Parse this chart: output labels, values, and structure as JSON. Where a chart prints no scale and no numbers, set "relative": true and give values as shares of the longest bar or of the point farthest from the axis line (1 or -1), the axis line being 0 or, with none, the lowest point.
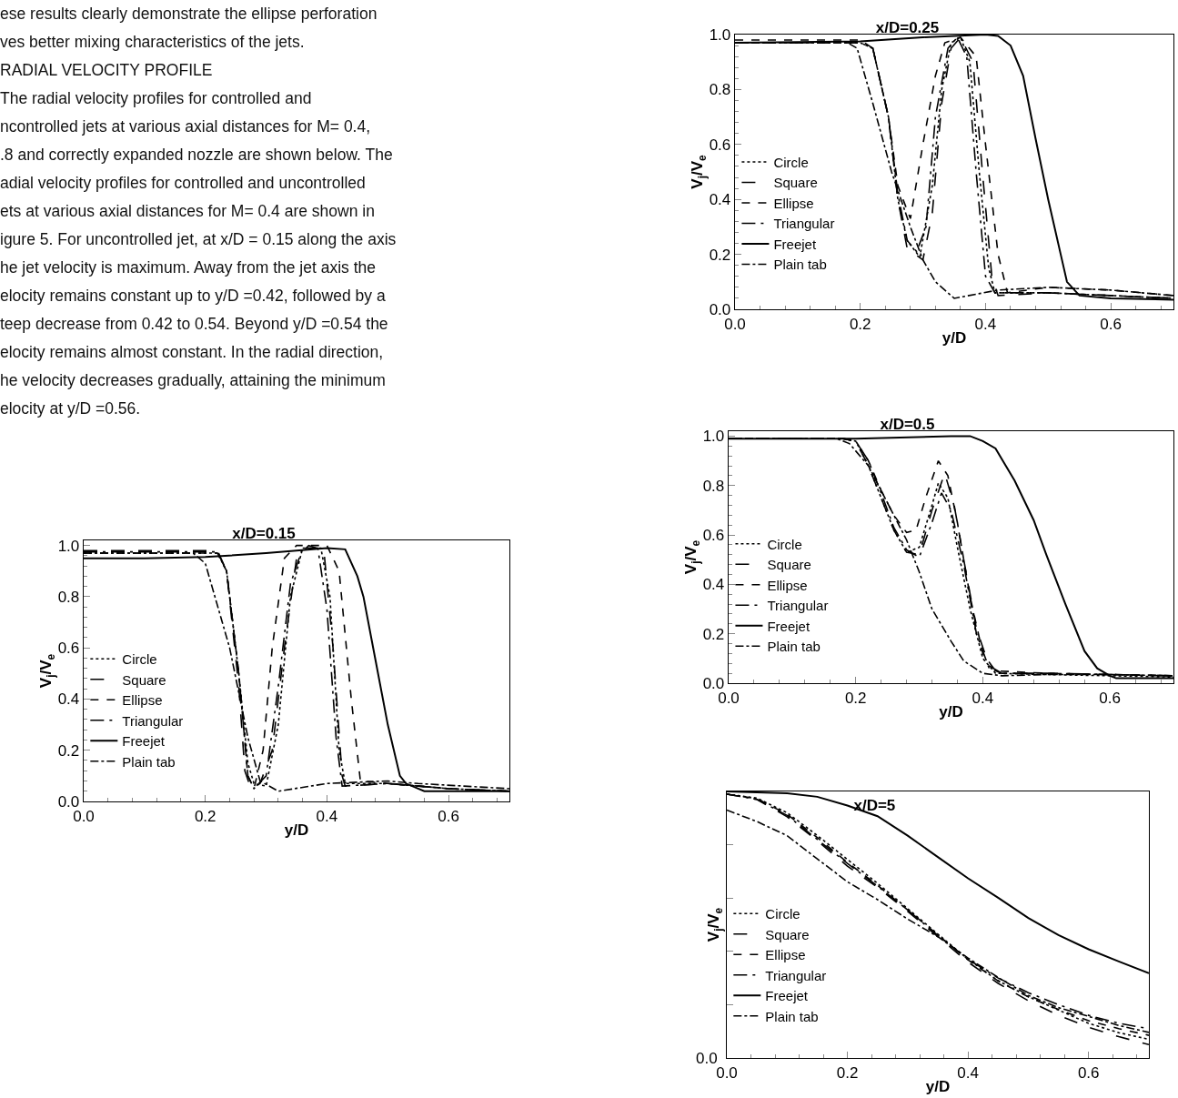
{
  "chart_data": [
    {
      "type": "other",
      "annotations": [
        "ese results clearly demonstrate the ellipse perforation",
        "ves better mixing characteristics of the jets.",
        "RADIAL VELOCITY PROFILE",
        "The radial velocity profiles for controlled and",
        "ncontrolled jets at various axial distances for M= 0.4,",
        ".8 and correctly expanded nozzle are shown below. The",
        "adial velocity profiles for controlled and uncontrolled",
        "ets at various axial distances for M= 0.4 are shown in",
        "igure 5. For uncontrolled jet, at x/D = 0.15 along the axis",
        "he jet velocity is maximum. Away from the jet axis the",
        "elocity remains constant up to y/D =0.42, followed by a",
        "teep decrease from 0.42 to 0.54. Beyond y/D =0.54 the",
        "elocity remains almost constant. In the radial direction,",
        "he velocity decreases gradually, attaining the minimum",
        "elocity at y/D =0.56."
      ]
    },
    {
      "type": "line",
      "title": "x/D=0.15",
      "xlabel": "y/D",
      "ylabel": "V$_{j}$/V$_{e}$",
      "xlim": [
        0,
        0.7
      ],
      "xticks": [
        {
          "value": 0,
          "label": "0.0"
        },
        {
          "value": 0.2,
          "label": "0.2"
        },
        {
          "value": 0.4,
          "label": "0.4"
        },
        {
          "value": 0.6,
          "label": "0.6"
        }
      ],
      "ylim": [
        0,
        1.02
      ],
      "yticks": [
        {
          "value": 0,
          "label": "0.0"
        },
        {
          "value": 0.2,
          "label": "0.2"
        },
        {
          "value": 0.4,
          "label": "0.4"
        },
        {
          "value": 0.6,
          "label": "0.6"
        },
        {
          "value": 0.8,
          "label": "0.8"
        },
        {
          "value": 1,
          "label": "1.0"
        }
      ],
      "grid": false,
      "legend": "left",
      "series": [
        {
          "name": "Circle",
          "color": "#000000",
          "line_style": "dotted",
          "x": [
            0,
            0.22,
            0.235,
            0.255,
            0.27,
            0.28,
            0.3,
            0.32,
            0.34,
            0.36,
            0.39,
            0.405,
            0.42,
            0.43,
            0.5,
            0.6,
            0.7
          ],
          "values": [
            0.97,
            0.97,
            0.9,
            0.5,
            0.15,
            0.07,
            0.06,
            0.3,
            0.8,
            0.99,
            0.99,
            0.8,
            0.2,
            0.07,
            0.07,
            0.05,
            0.04
          ]
        },
        {
          "name": "Square",
          "color": "#000000",
          "line_style": "longdash",
          "x": [
            0,
            0.22,
            0.235,
            0.255,
            0.265,
            0.275,
            0.29,
            0.31,
            0.33,
            0.35,
            0.37,
            0.395,
            0.41,
            0.425,
            0.43,
            0.5,
            0.6,
            0.7
          ],
          "values": [
            0.98,
            0.98,
            0.9,
            0.45,
            0.12,
            0.05,
            0.07,
            0.2,
            0.6,
            0.95,
            1.0,
            0.98,
            0.6,
            0.1,
            0.06,
            0.07,
            0.05,
            0.04
          ]
        },
        {
          "name": "Ellipse",
          "color": "#000000",
          "line_style": "dashed",
          "x": [
            0,
            0.22,
            0.235,
            0.255,
            0.27,
            0.28,
            0.295,
            0.31,
            0.33,
            0.35,
            0.4,
            0.42,
            0.44,
            0.455,
            0.5,
            0.6,
            0.7
          ],
          "values": [
            0.97,
            0.97,
            0.9,
            0.5,
            0.1,
            0.05,
            0.2,
            0.6,
            0.95,
            1.0,
            1.0,
            0.9,
            0.4,
            0.08,
            0.07,
            0.05,
            0.04
          ]
        },
        {
          "name": "Triangular",
          "color": "#000000",
          "line_style": "longdashdot",
          "x": [
            0,
            0.22,
            0.235,
            0.255,
            0.27,
            0.28,
            0.3,
            0.32,
            0.34,
            0.36,
            0.385,
            0.4,
            0.415,
            0.425,
            0.5,
            0.6,
            0.7
          ],
          "values": [
            0.975,
            0.975,
            0.9,
            0.5,
            0.1,
            0.05,
            0.1,
            0.45,
            0.85,
            0.99,
            0.99,
            0.75,
            0.25,
            0.06,
            0.07,
            0.05,
            0.04
          ]
        },
        {
          "name": "Freejet",
          "color": "#000000",
          "line_style": "solid",
          "x": [
            0,
            0.1,
            0.2,
            0.3,
            0.35,
            0.4,
            0.43,
            0.45,
            0.46,
            0.48,
            0.5,
            0.52,
            0.53,
            0.56,
            0.7
          ],
          "values": [
            0.95,
            0.95,
            0.955,
            0.97,
            0.98,
            0.99,
            0.985,
            0.88,
            0.8,
            0.55,
            0.3,
            0.1,
            0.07,
            0.04,
            0.04
          ]
        },
        {
          "name": "Plain tab",
          "color": "#000000",
          "line_style": "dashdot",
          "x": [
            0,
            0.18,
            0.2,
            0.24,
            0.27,
            0.29,
            0.32,
            0.4,
            0.45,
            0.5,
            0.55,
            0.7
          ],
          "values": [
            0.97,
            0.97,
            0.93,
            0.6,
            0.25,
            0.08,
            0.04,
            0.07,
            0.075,
            0.08,
            0.07,
            0.05
          ]
        }
      ]
    },
    {
      "type": "line",
      "title": "x/D=0.25",
      "xlabel": "y/D",
      "ylabel": "V$_{j}$/V$_{e}$",
      "xlim": [
        0,
        0.7
      ],
      "xticks": [
        {
          "value": 0,
          "label": "0.0"
        },
        {
          "value": 0.2,
          "label": "0.2"
        },
        {
          "value": 0.4,
          "label": "0.4"
        },
        {
          "value": 0.6,
          "label": "0.6"
        }
      ],
      "ylim": [
        0,
        1
      ],
      "yticks": [
        {
          "value": 0,
          "label": "0.0"
        },
        {
          "value": 0.2,
          "label": "0.2"
        },
        {
          "value": 0.4,
          "label": "0.4"
        },
        {
          "value": 0.6,
          "label": "0.6"
        },
        {
          "value": 0.8,
          "label": "0.8"
        },
        {
          "value": 1,
          "label": "1.0"
        }
      ],
      "grid": false,
      "legend": "left",
      "series": [
        {
          "name": "Circle",
          "color": "#000000",
          "line_style": "dotted",
          "x": [
            0,
            0.2,
            0.22,
            0.245,
            0.26,
            0.275,
            0.295,
            0.315,
            0.33,
            0.345,
            0.36,
            0.375,
            0.39,
            0.405,
            0.415,
            0.5,
            0.6,
            0.7
          ],
          "values": [
            0.97,
            0.97,
            0.95,
            0.7,
            0.4,
            0.25,
            0.19,
            0.45,
            0.8,
            0.97,
            0.99,
            0.9,
            0.5,
            0.15,
            0.06,
            0.06,
            0.05,
            0.04
          ]
        },
        {
          "name": "Square",
          "color": "#000000",
          "line_style": "longdash",
          "x": [
            0,
            0.2,
            0.22,
            0.245,
            0.26,
            0.275,
            0.3,
            0.315,
            0.33,
            0.345,
            0.36,
            0.38,
            0.395,
            0.41,
            0.42,
            0.5,
            0.6,
            0.7
          ],
          "values": [
            0.97,
            0.97,
            0.95,
            0.7,
            0.4,
            0.22,
            0.18,
            0.35,
            0.75,
            0.95,
            0.99,
            0.9,
            0.5,
            0.12,
            0.05,
            0.06,
            0.05,
            0.04
          ]
        },
        {
          "name": "Ellipse",
          "color": "#000000",
          "line_style": "dashed",
          "x": [
            0,
            0.2,
            0.22,
            0.245,
            0.26,
            0.28,
            0.3,
            0.32,
            0.335,
            0.36,
            0.385,
            0.4,
            0.42,
            0.435,
            0.5,
            0.6,
            0.7
          ],
          "values": [
            0.98,
            0.98,
            0.95,
            0.7,
            0.45,
            0.33,
            0.6,
            0.85,
            0.97,
            0.99,
            0.92,
            0.6,
            0.2,
            0.06,
            0.08,
            0.07,
            0.05
          ]
        },
        {
          "name": "Triangular",
          "color": "#000000",
          "line_style": "longdashdot",
          "x": [
            0,
            0.2,
            0.22,
            0.245,
            0.26,
            0.275,
            0.29,
            0.305,
            0.32,
            0.34,
            0.355,
            0.37,
            0.385,
            0.4,
            0.415,
            0.5,
            0.6,
            0.7
          ],
          "values": [
            0.97,
            0.97,
            0.95,
            0.7,
            0.42,
            0.25,
            0.21,
            0.3,
            0.7,
            0.95,
            0.99,
            0.92,
            0.5,
            0.12,
            0.06,
            0.06,
            0.05,
            0.04
          ]
        },
        {
          "name": "Freejet",
          "color": "#000000",
          "line_style": "solid",
          "x": [
            0,
            0.2,
            0.3,
            0.4,
            0.42,
            0.44,
            0.46,
            0.48,
            0.5,
            0.52,
            0.53,
            0.55,
            0.6,
            0.7
          ],
          "values": [
            0.97,
            0.975,
            0.99,
            1.0,
            0.995,
            0.96,
            0.85,
            0.62,
            0.4,
            0.2,
            0.1,
            0.05,
            0.04,
            0.035
          ]
        },
        {
          "name": "Plain tab",
          "color": "#000000",
          "line_style": "dashdot",
          "x": [
            0,
            0.18,
            0.195,
            0.22,
            0.25,
            0.28,
            0.3,
            0.32,
            0.35,
            0.42,
            0.5,
            0.6,
            0.7
          ],
          "values": [
            0.97,
            0.97,
            0.95,
            0.75,
            0.5,
            0.3,
            0.18,
            0.1,
            0.04,
            0.07,
            0.08,
            0.07,
            0.05
          ]
        }
      ]
    },
    {
      "type": "line",
      "title": "x/D=0.5",
      "xlabel": "y/D",
      "ylabel": "V$_{j}$/V$_{e}$",
      "xlim": [
        0,
        0.7
      ],
      "xticks": [
        {
          "value": 0,
          "label": "0.0"
        },
        {
          "value": 0.2,
          "label": "0.2"
        },
        {
          "value": 0.4,
          "label": "0.4"
        },
        {
          "value": 0.6,
          "label": "0.6"
        }
      ],
      "ylim": [
        0,
        1.02
      ],
      "yticks": [
        {
          "value": 0,
          "label": "0.0"
        },
        {
          "value": 0.2,
          "label": "0.2"
        },
        {
          "value": 0.4,
          "label": "0.4"
        },
        {
          "value": 0.6,
          "label": "0.6"
        },
        {
          "value": 0.8,
          "label": "0.8"
        },
        {
          "value": 1,
          "label": "1.0"
        }
      ],
      "grid": false,
      "legend": "left",
      "series": [
        {
          "name": "Circle",
          "color": "#000000",
          "line_style": "dotted",
          "x": [
            0,
            0.18,
            0.2,
            0.22,
            0.24,
            0.26,
            0.28,
            0.3,
            0.32,
            0.33,
            0.345,
            0.36,
            0.38,
            0.4,
            0.42,
            0.5,
            0.6,
            0.7
          ],
          "values": [
            0.99,
            0.99,
            0.98,
            0.88,
            0.75,
            0.62,
            0.53,
            0.55,
            0.72,
            0.81,
            0.75,
            0.55,
            0.3,
            0.1,
            0.04,
            0.035,
            0.03,
            0.025
          ]
        },
        {
          "name": "Square",
          "color": "#000000",
          "line_style": "longdash",
          "x": [
            0,
            0.18,
            0.2,
            0.22,
            0.24,
            0.26,
            0.28,
            0.3,
            0.32,
            0.34,
            0.355,
            0.37,
            0.39,
            0.41,
            0.43,
            0.5,
            0.6,
            0.7
          ],
          "values": [
            0.99,
            0.99,
            0.98,
            0.88,
            0.75,
            0.62,
            0.53,
            0.52,
            0.7,
            0.85,
            0.72,
            0.5,
            0.22,
            0.07,
            0.04,
            0.04,
            0.035,
            0.03
          ]
        },
        {
          "name": "Ellipse",
          "color": "#000000",
          "line_style": "dashed",
          "x": [
            0,
            0.18,
            0.2,
            0.22,
            0.24,
            0.26,
            0.28,
            0.295,
            0.31,
            0.33,
            0.345,
            0.36,
            0.38,
            0.4,
            0.42,
            0.5,
            0.6,
            0.7
          ],
          "values": [
            0.99,
            0.99,
            0.98,
            0.9,
            0.78,
            0.68,
            0.61,
            0.62,
            0.75,
            0.9,
            0.84,
            0.65,
            0.35,
            0.12,
            0.05,
            0.04,
            0.035,
            0.03
          ]
        },
        {
          "name": "Triangular",
          "color": "#000000",
          "line_style": "longdashdot",
          "x": [
            0,
            0.18,
            0.2,
            0.22,
            0.24,
            0.26,
            0.28,
            0.3,
            0.32,
            0.335,
            0.35,
            0.37,
            0.39,
            0.41,
            0.43,
            0.5,
            0.6,
            0.7
          ],
          "values": [
            0.99,
            0.99,
            0.98,
            0.9,
            0.77,
            0.63,
            0.54,
            0.51,
            0.65,
            0.77,
            0.7,
            0.48,
            0.2,
            0.06,
            0.04,
            0.04,
            0.035,
            0.03
          ]
        },
        {
          "name": "Freejet",
          "color": "#000000",
          "line_style": "solid",
          "x": [
            0,
            0.2,
            0.35,
            0.38,
            0.4,
            0.42,
            0.45,
            0.48,
            0.5,
            0.53,
            0.56,
            0.58,
            0.6,
            0.61,
            0.7
          ],
          "values": [
            0.99,
            0.99,
            1.0,
            1.0,
            0.98,
            0.95,
            0.82,
            0.66,
            0.52,
            0.32,
            0.13,
            0.06,
            0.03,
            0.02,
            0.02
          ]
        },
        {
          "name": "Plain tab",
          "color": "#000000",
          "line_style": "dashdot",
          "x": [
            0,
            0.17,
            0.19,
            0.22,
            0.25,
            0.28,
            0.3,
            0.32,
            0.35,
            0.37,
            0.4,
            0.43,
            0.5,
            0.6,
            0.7
          ],
          "values": [
            0.99,
            0.99,
            0.97,
            0.88,
            0.73,
            0.58,
            0.45,
            0.3,
            0.17,
            0.09,
            0.04,
            0.03,
            0.035,
            0.035,
            0.03
          ]
        }
      ]
    },
    {
      "type": "line",
      "relative": true,
      "title": "x/D=5",
      "xlabel": "y/D",
      "ylabel": "V$_{j}$/V$_{e}$",
      "annotations": [
        "0.0"
      ],
      "xlim": [
        0,
        0.7
      ],
      "xticks": [
        {
          "value": 0,
          "label": "0.0"
        },
        {
          "value": 0.2,
          "label": "0.2"
        },
        {
          "value": 0.4,
          "label": "0.4"
        },
        {
          "value": 0.6,
          "label": "0.6"
        }
      ],
      "grid": false,
      "legend": "left",
      "series": [
        {
          "name": "Circle",
          "color": "#000000",
          "line_style": "dotted",
          "x": [
            0,
            0.05,
            0.1,
            0.15,
            0.2,
            0.25,
            0.3,
            0.35,
            0.4,
            0.45,
            0.5,
            0.55,
            0.6,
            0.65,
            0.7
          ],
          "values": [
            0.99,
            0.975,
            0.92,
            0.835,
            0.745,
            0.655,
            0.56,
            0.465,
            0.37,
            0.29,
            0.23,
            0.18,
            0.13,
            0.095,
            0.07
          ]
        },
        {
          "name": "Square",
          "color": "#000000",
          "line_style": "longdash",
          "x": [
            0,
            0.05,
            0.1,
            0.15,
            0.2,
            0.25,
            0.3,
            0.35,
            0.4,
            0.45,
            0.5,
            0.55,
            0.6,
            0.65,
            0.7
          ],
          "values": [
            0.99,
            0.97,
            0.905,
            0.815,
            0.72,
            0.64,
            0.55,
            0.455,
            0.36,
            0.28,
            0.215,
            0.16,
            0.115,
            0.08,
            0.05
          ]
        },
        {
          "name": "Ellipse",
          "color": "#000000",
          "line_style": "dashed",
          "x": [
            0,
            0.05,
            0.1,
            0.15,
            0.2,
            0.25,
            0.3,
            0.35,
            0.4,
            0.45,
            0.5,
            0.55,
            0.6,
            0.65,
            0.7
          ],
          "values": [
            0.99,
            0.973,
            0.914,
            0.827,
            0.734,
            0.648,
            0.555,
            0.461,
            0.368,
            0.289,
            0.229,
            0.182,
            0.14,
            0.11,
            0.085
          ]
        },
        {
          "name": "Triangular",
          "color": "#000000",
          "line_style": "longdashdot",
          "x": [
            0,
            0.05,
            0.1,
            0.15,
            0.2,
            0.25,
            0.3,
            0.35,
            0.4,
            0.45,
            0.5,
            0.55,
            0.6,
            0.65,
            0.7
          ],
          "values": [
            0.99,
            0.97,
            0.91,
            0.82,
            0.73,
            0.645,
            0.555,
            0.46,
            0.37,
            0.3,
            0.245,
            0.2,
            0.16,
            0.13,
            0.11
          ]
        },
        {
          "name": "Freejet",
          "color": "#000000",
          "line_style": "solid",
          "x": [
            0,
            0.1,
            0.15,
            0.2,
            0.25,
            0.3,
            0.35,
            0.4,
            0.45,
            0.5,
            0.55,
            0.6,
            0.65,
            0.7
          ],
          "values": [
            1,
            0.993,
            0.98,
            0.947,
            0.907,
            0.834,
            0.754,
            0.674,
            0.601,
            0.525,
            0.461,
            0.408,
            0.362,
            0.318
          ]
        },
        {
          "name": "Plain tab",
          "color": "#000000",
          "line_style": "dashdot",
          "x": [
            0,
            0.05,
            0.1,
            0.15,
            0.2,
            0.25,
            0.3,
            0.35,
            0.4,
            0.45,
            0.5,
            0.55,
            0.6,
            0.65,
            0.7
          ],
          "values": [
            0.93,
            0.887,
            0.834,
            0.747,
            0.661,
            0.594,
            0.521,
            0.455,
            0.375,
            0.302,
            0.235,
            0.189,
            0.156,
            0.122,
            0.096
          ]
        }
      ]
    }
  ]
}
